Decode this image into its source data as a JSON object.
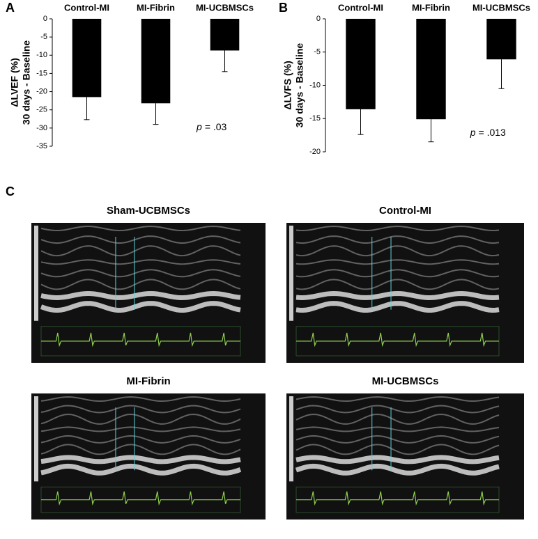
{
  "chart_data": [
    {
      "type": "bar",
      "panel": "A",
      "ylabel": [
        "ΔLVEF (%)",
        "30 days - Baseline"
      ],
      "categories": [
        "Control-MI",
        "MI-Fibrin",
        "MI-UCBMSCs"
      ],
      "values": [
        -21.5,
        -23.2,
        -8.7
      ],
      "error": [
        6.2,
        5.8,
        5.8
      ],
      "color": "#000000",
      "ylim": [
        -35,
        0
      ],
      "yticks": [
        0,
        -5,
        -10,
        -15,
        -20,
        -25,
        -30,
        -35
      ],
      "annotation": [
        "p",
        "= .03"
      ]
    },
    {
      "type": "bar",
      "panel": "B",
      "ylabel": [
        "ΔLVFS (%)",
        "30 days - Baseline"
      ],
      "categories": [
        "Control-MI",
        "MI-Fibrin",
        "MI-UCBMSCs"
      ],
      "values": [
        -13.6,
        -15.1,
        -6.1
      ],
      "error": [
        3.8,
        3.4,
        4.4
      ],
      "color": "#000000",
      "ylim": [
        -20,
        0
      ],
      "yticks": [
        0,
        -5,
        -10,
        -15,
        -20
      ],
      "annotation": [
        "p",
        "= .013"
      ]
    }
  ],
  "panel_c": {
    "label": "C",
    "images": [
      "Sham-UCBMSCs",
      "Control-MI",
      "MI-Fibrin",
      "MI-UCBMSCs"
    ]
  }
}
